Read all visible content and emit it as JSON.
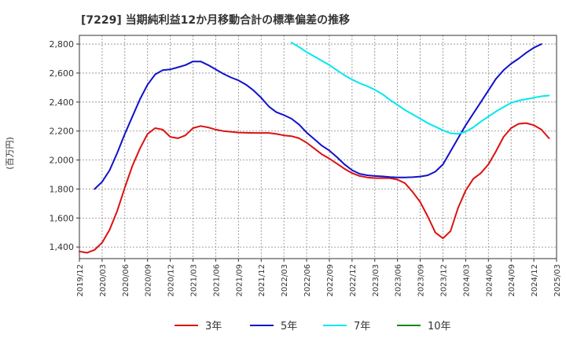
{
  "chart_data": {
    "type": "line",
    "title": "[7229]  当期純利益12か月移動合計の標準偏差の推移",
    "ylabel": "(百万円)",
    "xlabel": "",
    "ylim": [
      1320,
      2860
    ],
    "yticks": [
      1400,
      1600,
      1800,
      2000,
      2200,
      2400,
      2600,
      2800
    ],
    "ytick_labels": [
      "1,400",
      "1,600",
      "1,800",
      "2,000",
      "2,200",
      "2,400",
      "2,600",
      "2,800"
    ],
    "x_start": "2019-12",
    "x_end": "2025-03",
    "xtick_labels": [
      "2019/12",
      "2020/03",
      "2020/06",
      "2020/09",
      "2020/12",
      "2021/03",
      "2021/06",
      "2021/09",
      "2021/12",
      "2022/03",
      "2022/06",
      "2022/09",
      "2022/12",
      "2023/03",
      "2023/06",
      "2023/09",
      "2023/12",
      "2024/03",
      "2024/06",
      "2024/09",
      "2024/12",
      "2025/03"
    ],
    "grid": true,
    "legend_position": "bottom",
    "series": [
      {
        "name": "3年",
        "color": "#dd1111",
        "start": "2019-12",
        "values": [
          1370,
          1360,
          1380,
          1430,
          1520,
          1650,
          1810,
          1960,
          2080,
          2180,
          2220,
          2210,
          2160,
          2150,
          2170,
          2220,
          2235,
          2225,
          2210,
          2200,
          2195,
          2190,
          2188,
          2187,
          2187,
          2187,
          2180,
          2170,
          2165,
          2150,
          2120,
          2080,
          2040,
          2010,
          1975,
          1940,
          1910,
          1890,
          1880,
          1875,
          1875,
          1875,
          1865,
          1840,
          1780,
          1710,
          1610,
          1500,
          1460,
          1510,
          1670,
          1790,
          1870,
          1910,
          1970,
          2060,
          2160,
          2220,
          2250,
          2255,
          2240,
          2210,
          2150
        ]
      },
      {
        "name": "5年",
        "color": "#1111cc",
        "start": "2019-12",
        "values": [
          null,
          null,
          1800,
          1850,
          1930,
          2050,
          2180,
          2300,
          2420,
          2520,
          2590,
          2620,
          2625,
          2640,
          2655,
          2680,
          2680,
          2655,
          2625,
          2595,
          2570,
          2550,
          2520,
          2480,
          2430,
          2370,
          2330,
          2310,
          2285,
          2245,
          2190,
          2145,
          2100,
          2065,
          2020,
          1970,
          1930,
          1905,
          1895,
          1890,
          1887,
          1883,
          1880,
          1880,
          1882,
          1886,
          1895,
          1920,
          1970,
          2060,
          2150,
          2240,
          2320,
          2400,
          2480,
          2560,
          2620,
          2665,
          2700,
          2740,
          2775,
          2800
        ]
      },
      {
        "name": "7年",
        "color": "#00e8ee",
        "start": "2019-12",
        "values": [
          null,
          null,
          null,
          null,
          null,
          null,
          null,
          null,
          null,
          null,
          null,
          null,
          null,
          null,
          null,
          null,
          null,
          null,
          null,
          null,
          null,
          null,
          null,
          null,
          null,
          null,
          null,
          null,
          2810,
          2780,
          2745,
          2715,
          2685,
          2655,
          2620,
          2585,
          2555,
          2530,
          2510,
          2485,
          2455,
          2415,
          2380,
          2345,
          2315,
          2285,
          2255,
          2230,
          2205,
          2185,
          2180,
          2195,
          2225,
          2265,
          2300,
          2335,
          2365,
          2395,
          2410,
          2420,
          2430,
          2440,
          2445
        ]
      },
      {
        "name": "10年",
        "color": "#118811",
        "start": "2019-12",
        "values": []
      }
    ]
  }
}
